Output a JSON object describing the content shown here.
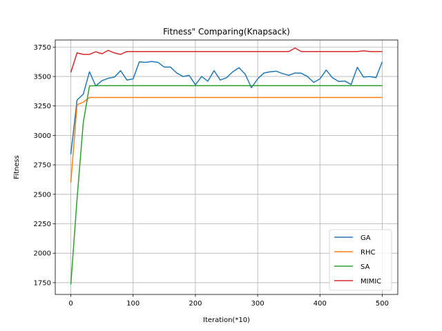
{
  "chart_data": {
    "type": "line",
    "title": "Fitness\" Comparing(Knapsack)",
    "xlabel": "Iteration(*10)",
    "ylabel": "Fitness",
    "xlim": [
      -25,
      525
    ],
    "ylim": [
      1650,
      3810
    ],
    "xticks": [
      0,
      100,
      200,
      300,
      400,
      500
    ],
    "yticks": [
      1750,
      2000,
      2250,
      2500,
      2750,
      3000,
      3250,
      3500,
      3750
    ],
    "grid": true,
    "legend_position": "lower-right",
    "x": [
      0,
      10,
      20,
      30,
      40,
      50,
      60,
      70,
      80,
      90,
      100,
      110,
      120,
      130,
      140,
      150,
      160,
      170,
      180,
      190,
      200,
      210,
      220,
      230,
      240,
      250,
      260,
      270,
      280,
      290,
      300,
      310,
      320,
      330,
      340,
      350,
      360,
      370,
      380,
      390,
      400,
      410,
      420,
      430,
      440,
      450,
      460,
      470,
      480,
      490,
      500
    ],
    "series": [
      {
        "name": "GA",
        "color": "#1f77b4",
        "values": [
          2840,
          3300,
          3350,
          3540,
          3420,
          3465,
          3485,
          3495,
          3550,
          3470,
          3480,
          3625,
          3620,
          3628,
          3620,
          3580,
          3580,
          3530,
          3500,
          3510,
          3430,
          3500,
          3460,
          3550,
          3470,
          3490,
          3540,
          3575,
          3520,
          3405,
          3480,
          3530,
          3540,
          3545,
          3525,
          3510,
          3530,
          3528,
          3500,
          3450,
          3480,
          3555,
          3490,
          3458,
          3462,
          3432,
          3578,
          3495,
          3500,
          3490,
          3625
        ]
      },
      {
        "name": "RHC",
        "color": "#ff7f0e",
        "values": [
          2600,
          3260,
          3282,
          3322,
          3322,
          3322,
          3322,
          3322,
          3322,
          3322,
          3322,
          3322,
          3322,
          3322,
          3322,
          3322,
          3322,
          3322,
          3322,
          3322,
          3322,
          3322,
          3322,
          3322,
          3322,
          3322,
          3322,
          3322,
          3322,
          3322,
          3322,
          3322,
          3322,
          3322,
          3322,
          3322,
          3322,
          3322,
          3322,
          3322,
          3322,
          3322,
          3322,
          3322,
          3322,
          3322,
          3322,
          3322,
          3322,
          3322,
          3322
        ]
      },
      {
        "name": "SA",
        "color": "#2ca02c",
        "values": [
          1735,
          2460,
          3110,
          3420,
          3422,
          3422,
          3422,
          3422,
          3422,
          3422,
          3422,
          3422,
          3422,
          3422,
          3422,
          3422,
          3422,
          3422,
          3422,
          3422,
          3422,
          3422,
          3422,
          3422,
          3422,
          3422,
          3422,
          3422,
          3422,
          3422,
          3422,
          3422,
          3422,
          3422,
          3422,
          3422,
          3422,
          3422,
          3422,
          3422,
          3422,
          3422,
          3422,
          3422,
          3422,
          3422,
          3422,
          3422,
          3422,
          3422,
          3422
        ]
      },
      {
        "name": "MIMIC",
        "color": "#d62728",
        "values": [
          3535,
          3700,
          3688,
          3688,
          3710,
          3693,
          3722,
          3700,
          3688,
          3712,
          3712,
          3712,
          3712,
          3712,
          3712,
          3712,
          3712,
          3712,
          3712,
          3712,
          3712,
          3712,
          3712,
          3712,
          3712,
          3712,
          3712,
          3712,
          3712,
          3712,
          3712,
          3712,
          3712,
          3712,
          3712,
          3712,
          3742,
          3712,
          3712,
          3712,
          3712,
          3712,
          3712,
          3712,
          3712,
          3712,
          3712,
          3718,
          3712,
          3712,
          3712
        ]
      }
    ]
  }
}
